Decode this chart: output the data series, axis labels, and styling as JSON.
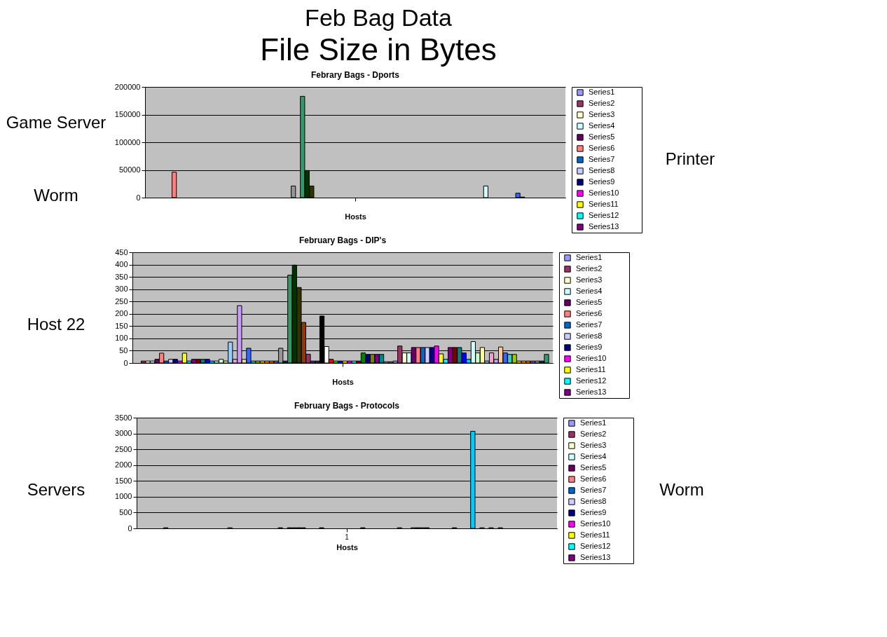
{
  "chart_data": [
    {
      "type": "other",
      "title": "Feb Bag Data",
      "subtitle": "File Size in Bytes"
    },
    {
      "type": "bar",
      "title": "Febrary Bags - Dports",
      "xlabel": "Hosts",
      "categories": [
        null
      ],
      "ylim": [
        0,
        200000
      ],
      "yticks": [
        0,
        50000,
        100000,
        150000,
        200000
      ],
      "grid": "y",
      "legend": "right",
      "annotations": [
        "Game Server",
        "Worm",
        "Printer"
      ],
      "series": [
        {
          "name": "Series1",
          "color": "#9999ff",
          "values": [
            null
          ]
        },
        {
          "name": "Series2",
          "color": "#993366",
          "values": [
            null
          ]
        },
        {
          "name": "Series3",
          "color": "#ffffcc",
          "values": [
            null
          ]
        },
        {
          "name": "Series4",
          "color": "#ccffff",
          "values": [
            null
          ]
        },
        {
          "name": "Series5",
          "color": "#660066",
          "values": [
            null
          ]
        },
        {
          "name": "Series6",
          "color": "#ff8080",
          "values": [
            46000
          ]
        },
        {
          "name": "Series7",
          "color": "#0066cc",
          "values": [
            null
          ]
        },
        {
          "name": "Series8",
          "color": "#ccccff",
          "values": [
            null
          ]
        },
        {
          "name": "Series9",
          "color": "#000080",
          "values": [
            null
          ]
        },
        {
          "name": "Series10",
          "color": "#ff00ff",
          "values": [
            null
          ]
        },
        {
          "name": "Series11",
          "color": "#ffff00",
          "values": [
            null
          ]
        },
        {
          "name": "Series12",
          "color": "#00ffff",
          "values": [
            null
          ]
        },
        {
          "name": "Series13",
          "color": "#800080",
          "values": [
            null
          ]
        },
        {
          "values": [
            null
          ]
        },
        {
          "values": [
            null
          ]
        },
        {
          "values": [
            null
          ]
        },
        {
          "values": [
            null
          ]
        },
        {
          "values": [
            null
          ]
        },
        {
          "values": [
            null
          ]
        },
        {
          "values": [
            null
          ]
        },
        {
          "values": [
            null
          ]
        },
        {
          "values": [
            null
          ]
        },
        {
          "values": [
            null
          ]
        },
        {
          "values": [
            null
          ]
        },
        {
          "values": [
            null
          ]
        },
        {
          "values": [
            null
          ]
        },
        {
          "values": [
            null
          ]
        },
        {
          "values": [
            null
          ]
        },
        {
          "values": [
            null
          ]
        },
        {
          "values": [
            null
          ]
        },
        {
          "values": [
            null
          ]
        },
        {
          "color": "#969696",
          "values": [
            21000
          ]
        },
        {
          "values": [
            null
          ]
        },
        {
          "color": "#339966",
          "values": [
            183000
          ]
        },
        {
          "color": "#003300",
          "values": [
            49000
          ]
        },
        {
          "color": "#333300",
          "values": [
            21000
          ]
        },
        {
          "values": [
            null
          ]
        },
        {
          "values": [
            null
          ]
        },
        {
          "values": [
            null
          ]
        },
        {
          "values": [
            null
          ]
        },
        {
          "values": [
            null
          ]
        },
        {
          "values": [
            null
          ]
        },
        {
          "values": [
            null
          ]
        },
        {
          "values": [
            null
          ]
        },
        {
          "values": [
            null
          ]
        },
        {
          "values": [
            null
          ]
        },
        {
          "values": [
            null
          ]
        },
        {
          "values": [
            null
          ]
        },
        {
          "values": [
            null
          ]
        },
        {
          "values": [
            null
          ]
        },
        {
          "values": [
            null
          ]
        },
        {
          "values": [
            null
          ]
        },
        {
          "values": [
            null
          ]
        },
        {
          "values": [
            null
          ]
        },
        {
          "values": [
            null
          ]
        },
        {
          "values": [
            null
          ]
        },
        {
          "values": [
            null
          ]
        },
        {
          "values": [
            null
          ]
        },
        {
          "values": [
            null
          ]
        },
        {
          "values": [
            null
          ]
        },
        {
          "values": [
            null
          ]
        },
        {
          "values": [
            null
          ]
        },
        {
          "values": [
            null
          ]
        },
        {
          "values": [
            null
          ]
        },
        {
          "values": [
            null
          ]
        },
        {
          "values": [
            null
          ]
        },
        {
          "values": [
            null
          ]
        },
        {
          "values": [
            null
          ]
        },
        {
          "values": [
            null
          ]
        },
        {
          "values": [
            null
          ]
        },
        {
          "values": [
            null
          ]
        },
        {
          "values": [
            null
          ]
        },
        {
          "values": [
            null
          ]
        },
        {
          "color": "#ccffff",
          "values": [
            21000
          ]
        },
        {
          "values": [
            null
          ]
        },
        {
          "values": [
            null
          ]
        },
        {
          "values": [
            null
          ]
        },
        {
          "values": [
            null
          ]
        },
        {
          "values": [
            null
          ]
        },
        {
          "values": [
            null
          ]
        },
        {
          "color": "#3366ff",
          "values": [
            8000
          ]
        },
        {
          "color": "#33cccc",
          "values": [
            1000
          ]
        },
        {
          "values": [
            null
          ]
        },
        {
          "values": [
            null
          ]
        },
        {
          "values": [
            null
          ]
        },
        {
          "values": [
            null
          ]
        },
        {
          "values": [
            null
          ]
        },
        {
          "values": [
            null
          ]
        },
        {
          "values": [
            null
          ]
        },
        {
          "values": [
            null
          ]
        }
      ]
    },
    {
      "type": "bar",
      "title": "February Bags - DIP's",
      "xlabel": "Hosts",
      "categories": [
        null
      ],
      "ylim": [
        0,
        450
      ],
      "yticks": [
        0,
        50,
        100,
        150,
        200,
        250,
        300,
        350,
        400,
        450
      ],
      "grid": "y",
      "legend": "right",
      "annotations": [
        "Host 22"
      ],
      "series": [
        {
          "name": "Series1",
          "color": "#9999ff",
          "values": [
            null
          ]
        },
        {
          "name": "Series2",
          "color": "#993366",
          "values": [
            8
          ]
        },
        {
          "name": "Series3",
          "color": "#ffffcc",
          "values": [
            8
          ]
        },
        {
          "name": "Series4",
          "color": "#ccffff",
          "values": [
            8
          ]
        },
        {
          "name": "Series5",
          "color": "#660066",
          "values": [
            15
          ]
        },
        {
          "name": "Series6",
          "color": "#ff8080",
          "values": [
            40
          ]
        },
        {
          "name": "Series7",
          "color": "#0066cc",
          "values": [
            8
          ]
        },
        {
          "name": "Series8",
          "color": "#ccccff",
          "values": [
            15
          ]
        },
        {
          "name": "Series9",
          "color": "#000080",
          "values": [
            15
          ]
        },
        {
          "name": "Series10",
          "color": "#ff00ff",
          "values": [
            8
          ]
        },
        {
          "name": "Series11",
          "color": "#ffff00",
          "values": [
            40
          ]
        },
        {
          "name": "Series12",
          "color": "#00ffff",
          "values": [
            8
          ]
        },
        {
          "name": "Series13",
          "color": "#800080",
          "values": [
            15
          ]
        },
        {
          "color": "#800000",
          "values": [
            15
          ]
        },
        {
          "color": "#008080",
          "values": [
            15
          ]
        },
        {
          "color": "#0000ff",
          "values": [
            15
          ]
        },
        {
          "color": "#00ccff",
          "values": [
            8
          ]
        },
        {
          "color": "#ccffff",
          "values": [
            8
          ]
        },
        {
          "color": "#ccffcc",
          "values": [
            15
          ]
        },
        {
          "color": "#ffff99",
          "values": [
            8
          ]
        },
        {
          "color": "#99ccff",
          "values": [
            85
          ]
        },
        {
          "color": "#ff99cc",
          "values": [
            15
          ]
        },
        {
          "color": "#cc99ff",
          "values": [
            233
          ]
        },
        {
          "color": "#ffcc99",
          "values": [
            15
          ]
        },
        {
          "color": "#3366ff",
          "values": [
            60
          ]
        },
        {
          "color": "#33cccc",
          "values": [
            8
          ]
        },
        {
          "color": "#99cc00",
          "values": [
            8
          ]
        },
        {
          "color": "#ffcc00",
          "values": [
            8
          ]
        },
        {
          "color": "#ff9900",
          "values": [
            8
          ]
        },
        {
          "color": "#ff6600",
          "values": [
            8
          ]
        },
        {
          "color": "#666699",
          "values": [
            8
          ]
        },
        {
          "color": "#969696",
          "values": [
            60
          ]
        },
        {
          "color": "#003366",
          "values": [
            8
          ]
        },
        {
          "color": "#339966",
          "values": [
            357
          ]
        },
        {
          "color": "#003300",
          "values": [
            398
          ]
        },
        {
          "color": "#333300",
          "values": [
            307
          ]
        },
        {
          "color": "#993300",
          "values": [
            165
          ]
        },
        {
          "color": "#993366",
          "values": [
            36
          ]
        },
        {
          "color": "#333399",
          "values": [
            8
          ]
        },
        {
          "color": "#333333",
          "values": [
            8
          ]
        },
        {
          "color": "#000000",
          "values": [
            191
          ]
        },
        {
          "color": "#ffffff",
          "values": [
            67
          ]
        },
        {
          "color": "#ff0000",
          "values": [
            15
          ]
        },
        {
          "color": "#00ff00",
          "values": [
            8
          ]
        },
        {
          "color": "#0000ff",
          "values": [
            8
          ]
        },
        {
          "color": "#ffff00",
          "values": [
            8
          ]
        },
        {
          "color": "#ff00ff",
          "values": [
            8
          ]
        },
        {
          "color": "#00ffff",
          "values": [
            8
          ]
        },
        {
          "color": "#800000",
          "values": [
            8
          ]
        },
        {
          "color": "#008000",
          "values": [
            41
          ]
        },
        {
          "color": "#000080",
          "values": [
            35
          ]
        },
        {
          "color": "#808000",
          "values": [
            35
          ]
        },
        {
          "color": "#800080",
          "values": [
            35
          ]
        },
        {
          "color": "#008080",
          "values": [
            35
          ]
        },
        {
          "color": "#c0c0c0",
          "values": [
            5
          ]
        },
        {
          "color": "#808080",
          "values": [
            5
          ]
        },
        {
          "color": "#9999ff",
          "values": [
            8
          ]
        },
        {
          "color": "#993366",
          "values": [
            69
          ]
        },
        {
          "color": "#ffffcc",
          "values": [
            41
          ]
        },
        {
          "color": "#ccffff",
          "values": [
            41
          ]
        },
        {
          "color": "#660066",
          "values": [
            63
          ]
        },
        {
          "color": "#ff8080",
          "values": [
            63
          ]
        },
        {
          "color": "#0066cc",
          "values": [
            63
          ]
        },
        {
          "color": "#ccccff",
          "values": [
            63
          ]
        },
        {
          "color": "#000080",
          "values": [
            63
          ]
        },
        {
          "color": "#ff00ff",
          "values": [
            69
          ]
        },
        {
          "color": "#ffff00",
          "values": [
            37
          ]
        },
        {
          "color": "#00ffff",
          "values": [
            15
          ]
        },
        {
          "color": "#800080",
          "values": [
            63
          ]
        },
        {
          "color": "#800000",
          "values": [
            63
          ]
        },
        {
          "color": "#008080",
          "values": [
            63
          ]
        },
        {
          "color": "#0000ff",
          "values": [
            41
          ]
        },
        {
          "color": "#00ccff",
          "values": [
            15
          ]
        },
        {
          "color": "#ccffff",
          "values": [
            87
          ]
        },
        {
          "color": "#ccffcc",
          "values": [
            41
          ]
        },
        {
          "color": "#ffff99",
          "values": [
            63
          ]
        },
        {
          "color": "#99ccff",
          "values": [
            8
          ]
        },
        {
          "color": "#ff99cc",
          "values": [
            41
          ]
        },
        {
          "color": "#cc99ff",
          "values": [
            15
          ]
        },
        {
          "color": "#ffcc99",
          "values": [
            65
          ]
        },
        {
          "color": "#3366ff",
          "values": [
            41
          ]
        },
        {
          "color": "#33cccc",
          "values": [
            35
          ]
        },
        {
          "color": "#99cc00",
          "values": [
            35
          ]
        },
        {
          "color": "#ffcc00",
          "values": [
            8
          ]
        },
        {
          "color": "#ff9900",
          "values": [
            8
          ]
        },
        {
          "color": "#ff6600",
          "values": [
            8
          ]
        },
        {
          "color": "#666699",
          "values": [
            8
          ]
        },
        {
          "color": "#969696",
          "values": [
            8
          ]
        },
        {
          "color": "#003366",
          "values": [
            8
          ]
        },
        {
          "color": "#339966",
          "values": [
            35
          ]
        }
      ]
    },
    {
      "type": "bar",
      "title": "February Bags - Protocols",
      "xlabel": "Hosts",
      "categories": [
        "1"
      ],
      "ylim": [
        0,
        3500
      ],
      "yticks": [
        0,
        500,
        1000,
        1500,
        2000,
        2500,
        3000,
        3500
      ],
      "grid": "y",
      "legend": "right",
      "annotations": [
        "Servers",
        "Worm"
      ],
      "series": [
        {
          "name": "Series1",
          "color": "#9999ff",
          "values": [
            null
          ]
        },
        {
          "name": "Series2",
          "color": "#993366",
          "values": [
            null
          ]
        },
        {
          "name": "Series3",
          "color": "#ffffcc",
          "values": [
            null
          ]
        },
        {
          "name": "Series4",
          "color": "#ccffff",
          "values": [
            null
          ]
        },
        {
          "name": "Series5",
          "color": "#660066",
          "values": [
            null
          ]
        },
        {
          "name": "Series6",
          "color": "#ff8080",
          "values": [
            20
          ]
        },
        {
          "name": "Series7",
          "color": "#0066cc",
          "values": [
            null
          ]
        },
        {
          "name": "Series8",
          "color": "#ccccff",
          "values": [
            null
          ]
        },
        {
          "name": "Series9",
          "color": "#000080",
          "values": [
            null
          ]
        },
        {
          "name": "Series10",
          "color": "#ff00ff",
          "values": [
            null
          ]
        },
        {
          "name": "Series11",
          "color": "#ffff00",
          "values": [
            null
          ]
        },
        {
          "name": "Series12",
          "color": "#00ffff",
          "values": [
            null
          ]
        },
        {
          "name": "Series13",
          "color": "#800080",
          "values": [
            null
          ]
        },
        {
          "values": [
            null
          ]
        },
        {
          "values": [
            null
          ]
        },
        {
          "values": [
            null
          ]
        },
        {
          "values": [
            null
          ]
        },
        {
          "values": [
            null
          ]
        },
        {
          "values": [
            null
          ]
        },
        {
          "color": "#ffff99",
          "values": [
            20
          ]
        },
        {
          "values": [
            null
          ]
        },
        {
          "values": [
            null
          ]
        },
        {
          "values": [
            null
          ]
        },
        {
          "values": [
            null
          ]
        },
        {
          "values": [
            null
          ]
        },
        {
          "values": [
            null
          ]
        },
        {
          "values": [
            null
          ]
        },
        {
          "values": [
            null
          ]
        },
        {
          "values": [
            null
          ]
        },
        {
          "values": [
            null
          ]
        },
        {
          "color": "#666699",
          "values": [
            20
          ]
        },
        {
          "values": [
            null
          ]
        },
        {
          "color": "#003366",
          "values": [
            20
          ]
        },
        {
          "color": "#339966",
          "values": [
            20
          ]
        },
        {
          "color": "#003300",
          "values": [
            20
          ]
        },
        {
          "color": "#333300",
          "values": [
            20
          ]
        },
        {
          "values": [
            null
          ]
        },
        {
          "values": [
            null
          ]
        },
        {
          "values": [
            null
          ]
        },
        {
          "color": "#333333",
          "values": [
            20
          ]
        },
        {
          "values": [
            null
          ]
        },
        {
          "values": [
            null
          ]
        },
        {
          "values": [
            null
          ]
        },
        {
          "values": [
            null
          ]
        },
        {
          "values": [
            null
          ]
        },
        {
          "values": [
            null
          ]
        },
        {
          "values": [
            null
          ]
        },
        {
          "values": [
            null
          ]
        },
        {
          "color": "#800000",
          "values": [
            20
          ]
        },
        {
          "values": [
            null
          ]
        },
        {
          "values": [
            null
          ]
        },
        {
          "values": [
            null
          ]
        },
        {
          "values": [
            null
          ]
        },
        {
          "values": [
            null
          ]
        },
        {
          "values": [
            null
          ]
        },
        {
          "values": [
            null
          ]
        },
        {
          "color": "#9999ff",
          "values": [
            20
          ]
        },
        {
          "values": [
            null
          ]
        },
        {
          "values": [
            null
          ]
        },
        {
          "color": "#ccffff",
          "values": [
            20
          ]
        },
        {
          "color": "#660066",
          "values": [
            20
          ]
        },
        {
          "color": "#ff8080",
          "values": [
            20
          ]
        },
        {
          "color": "#0066cc",
          "values": [
            20
          ]
        },
        {
          "values": [
            null
          ]
        },
        {
          "values": [
            null
          ]
        },
        {
          "values": [
            null
          ]
        },
        {
          "values": [
            null
          ]
        },
        {
          "values": [
            null
          ]
        },
        {
          "color": "#800080",
          "values": [
            20
          ]
        },
        {
          "values": [
            null
          ]
        },
        {
          "values": [
            null
          ]
        },
        {
          "values": [
            null
          ]
        },
        {
          "color": "#00ccff",
          "values": [
            3070
          ]
        },
        {
          "values": [
            null
          ]
        },
        {
          "color": "#ccffcc",
          "values": [
            20
          ]
        },
        {
          "values": [
            null
          ]
        },
        {
          "color": "#99ccff",
          "values": [
            20
          ]
        },
        {
          "values": [
            null
          ]
        },
        {
          "color": "#cc99ff",
          "values": [
            20
          ]
        },
        {
          "values": [
            null
          ]
        },
        {
          "values": [
            null
          ]
        },
        {
          "values": [
            null
          ]
        },
        {
          "values": [
            null
          ]
        },
        {
          "values": [
            null
          ]
        },
        {
          "values": [
            null
          ]
        },
        {
          "values": [
            null
          ]
        },
        {
          "values": [
            null
          ]
        },
        {
          "values": [
            null
          ]
        },
        {
          "values": [
            null
          ]
        },
        {
          "values": [
            null
          ]
        }
      ]
    }
  ]
}
